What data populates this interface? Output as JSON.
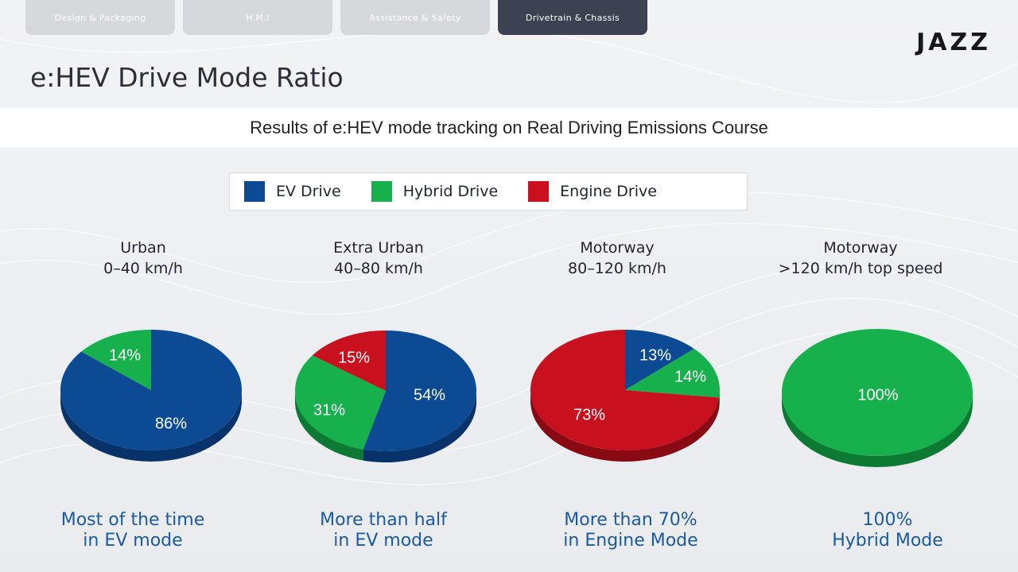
{
  "tabs": [
    {
      "label": "Design & Packaging",
      "active": false
    },
    {
      "label": "H.M.I",
      "active": false
    },
    {
      "label": "Assistance & Safety",
      "active": false
    },
    {
      "label": "Drivetrain & Chassis",
      "active": true
    }
  ],
  "logo": "JAZZ",
  "page_title": "e:HEV Drive Mode Ratio",
  "subtitle": "Results of e:HEV mode tracking on Real Driving Emissions Course",
  "colors": {
    "ev": "#0d4a94",
    "hybrid": "#16b04c",
    "engine": "#c8101e",
    "caption": "#1c5aa0"
  },
  "chart_data": {
    "type": "pie",
    "legend": [
      {
        "name": "EV Drive",
        "color": "#0d4a94"
      },
      {
        "name": "Hybrid Drive",
        "color": "#16b04c"
      },
      {
        "name": "Engine Drive",
        "color": "#c8101e"
      }
    ],
    "legend_placement": "top",
    "charts": [
      {
        "heading_line1": "Urban",
        "heading_line2": "0–40 km/h",
        "slices": [
          {
            "name": "EV Drive",
            "value": 86,
            "label": "86%"
          },
          {
            "name": "Hybrid Drive",
            "value": 14,
            "label": "14%"
          }
        ],
        "caption_line1": "Most of the time",
        "caption_line2": "in EV mode"
      },
      {
        "heading_line1": "Extra Urban",
        "heading_line2": "40–80 km/h",
        "slices": [
          {
            "name": "EV Drive",
            "value": 54,
            "label": "54%"
          },
          {
            "name": "Hybrid Drive",
            "value": 31,
            "label": "31%"
          },
          {
            "name": "Engine Drive",
            "value": 15,
            "label": "15%"
          }
        ],
        "caption_line1": "More than half",
        "caption_line2": "in EV mode"
      },
      {
        "heading_line1": "Motorway",
        "heading_line2": "80–120 km/h",
        "slices": [
          {
            "name": "EV Drive",
            "value": 13,
            "label": "13%"
          },
          {
            "name": "Hybrid Drive",
            "value": 14,
            "label": "14%"
          },
          {
            "name": "Engine Drive",
            "value": 73,
            "label": "73%"
          }
        ],
        "caption_line1": "More than 70%",
        "caption_line2": "in Engine Mode"
      },
      {
        "heading_line1": "Motorway",
        "heading_line2": ">120 km/h top speed",
        "slices": [
          {
            "name": "Hybrid Drive",
            "value": 100,
            "label": "100%"
          }
        ],
        "caption_line1": "100%",
        "caption_line2": "Hybrid Mode"
      }
    ]
  }
}
